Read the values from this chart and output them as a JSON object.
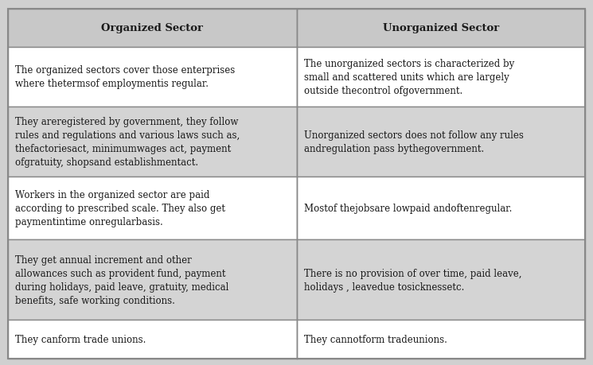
{
  "headers": [
    "Organized Sector",
    "Unorganized Sector"
  ],
  "rows": [
    [
      "The organized sectors cover those enterprises\nwhere thetermsof employmentis regular.",
      "The unorganized sectors is characterized by\nsmall and scattered units which are largely\noutside thecontrol ofgovernment."
    ],
    [
      "They areregistered by government, they follow\nrules and regulations and various laws such as,\nthefactoriesact, minimumwages act, payment\nofgratuity, shopsand establishmentact.",
      "Unorganized sectors does not follow any rules\nandregulation pass bythegovernment."
    ],
    [
      "Workers in the organized sector are paid\naccording to prescribed scale. They also get\npaymentintime onregularbasis.",
      "Mostof thejobsare lowpaid andoftenregular."
    ],
    [
      "They get annual increment and other\nallowances such as provident fund, payment\nduring holidays, paid leave, gratuity, medical\nbenefits, safe working conditions.",
      "There is no provision of over time, paid leave,\nholidays , leavedue tosicknessetc."
    ],
    [
      "They canform trade unions.",
      "They cannotform tradeunions."
    ]
  ],
  "header_bg": "#c8c8c8",
  "row_bg_light": "#ffffff",
  "row_bg_dark": "#d4d4d4",
  "outer_bg": "#d0d0d0",
  "border_color": "#888888",
  "text_color": "#1a1a1a",
  "header_font_size": 9.5,
  "cell_font_size": 8.5,
  "fig_w": 7.45,
  "fig_h": 4.6
}
